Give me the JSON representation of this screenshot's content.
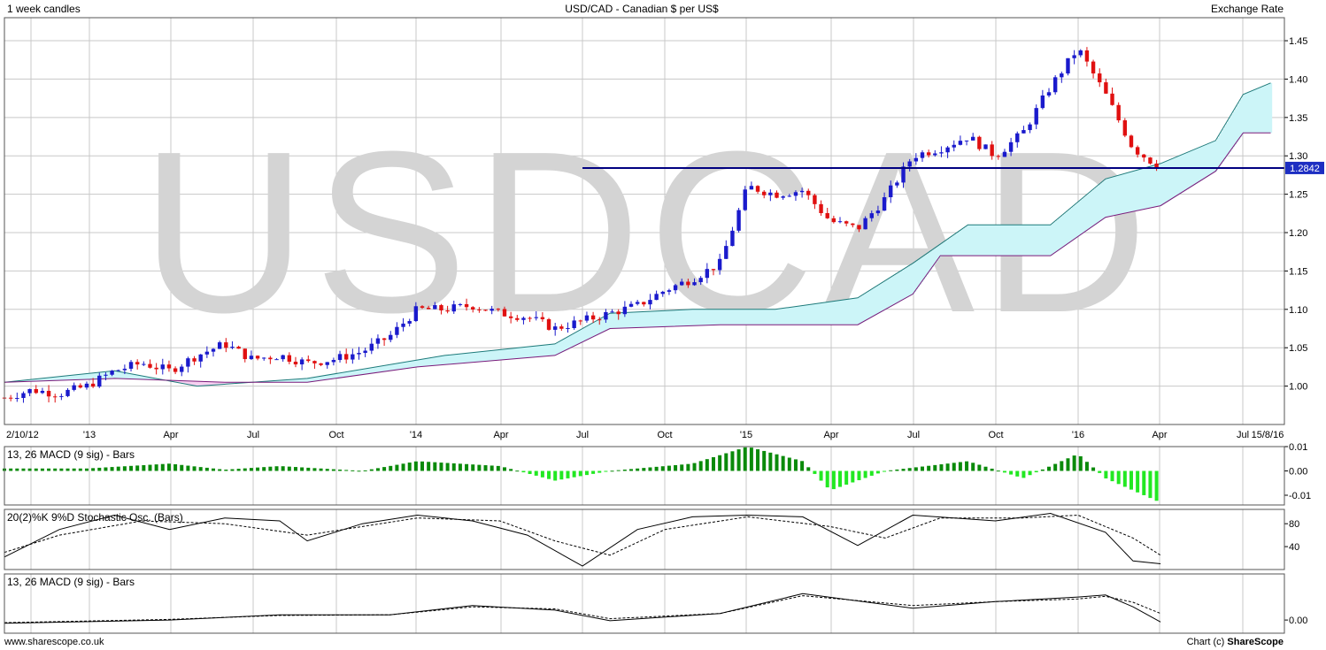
{
  "header": {
    "left": "1 week candles",
    "center": "USD/CAD - Canadian $ per US$",
    "right": "Exchange Rate"
  },
  "watermark": "USDCAD",
  "footer": {
    "left": "www.sharescope.co.uk",
    "right_prefix": "Chart (c) ",
    "right_brand": "ShareScope"
  },
  "colors": {
    "up_candle": "#1a1acc",
    "down_candle": "#e01010",
    "cloud_bull": "#ccf5f8",
    "cloud_bear": "#f6d0f0",
    "span_a": "#1d7a7a",
    "span_b": "#7a1a7a",
    "level_line": "#000080",
    "macd_bar_dark": "#0a8a0a",
    "macd_bar_light": "#22e822",
    "watermark": "#d4d4d4",
    "grid": "#c8c8c8"
  },
  "chart_data": [
    {
      "type": "candlestick",
      "title": "USD/CAD - Canadian $ per US$",
      "x_tick_labels": [
        "2/10/12",
        "'13",
        "Apr",
        "Jul",
        "Oct",
        "'14",
        "Apr",
        "Jul",
        "Oct",
        "'15",
        "Apr",
        "Jul",
        "Oct",
        "'16",
        "Apr",
        "Jul",
        "15/8/16"
      ],
      "y_ticks": [
        "1.00",
        "1.05",
        "1.10",
        "1.15",
        "1.20",
        "1.25",
        "1.30",
        "1.35",
        "1.40",
        "1.45"
      ],
      "ylim": [
        0.95,
        1.48
      ],
      "last_value": "1.2842",
      "last_value_num": 1.2842,
      "level_line": 1.2842,
      "level_line_start": "2014-07",
      "weekly_close_path": [
        [
          "2012-10",
          0.985
        ],
        [
          "2012-11",
          0.995
        ],
        [
          "2012-12",
          0.99
        ],
        [
          "2013-01",
          1.0
        ],
        [
          "2013-02",
          1.02
        ],
        [
          "2013-03",
          1.03
        ],
        [
          "2013-04",
          1.02
        ],
        [
          "2013-05",
          1.04
        ],
        [
          "2013-06",
          1.055
        ],
        [
          "2013-07",
          1.035
        ],
        [
          "2013-08",
          1.04
        ],
        [
          "2013-09",
          1.03
        ],
        [
          "2013-10",
          1.035
        ],
        [
          "2013-11",
          1.045
        ],
        [
          "2013-12",
          1.065
        ],
        [
          "2014-01",
          1.1
        ],
        [
          "2014-02",
          1.1
        ],
        [
          "2014-03",
          1.105
        ],
        [
          "2014-04",
          1.095
        ],
        [
          "2014-05",
          1.09
        ],
        [
          "2014-06",
          1.075
        ],
        [
          "2014-07",
          1.085
        ],
        [
          "2014-08",
          1.095
        ],
        [
          "2014-09",
          1.105
        ],
        [
          "2014-10",
          1.125
        ],
        [
          "2014-11",
          1.14
        ],
        [
          "2014-12",
          1.16
        ],
        [
          "2015-01",
          1.26
        ],
        [
          "2015-02",
          1.25
        ],
        [
          "2015-03",
          1.255
        ],
        [
          "2015-04",
          1.215
        ],
        [
          "2015-05",
          1.205
        ],
        [
          "2015-06",
          1.245
        ],
        [
          "2015-07",
          1.3
        ],
        [
          "2015-08",
          1.31
        ],
        [
          "2015-09",
          1.325
        ],
        [
          "2015-10",
          1.3
        ],
        [
          "2015-11",
          1.33
        ],
        [
          "2015-12",
          1.39
        ],
        [
          "2016-01",
          1.44
        ],
        [
          "2016-02",
          1.38
        ],
        [
          "2016-03",
          1.31
        ],
        [
          "2016-04",
          1.2842
        ]
      ],
      "cloud_span_a": [
        [
          "2012-10",
          1.005
        ],
        [
          "2013-02",
          1.02
        ],
        [
          "2013-05",
          1.0
        ],
        [
          "2013-09",
          1.01
        ],
        [
          "2014-02",
          1.04
        ],
        [
          "2014-06",
          1.055
        ],
        [
          "2014-08",
          1.095
        ],
        [
          "2014-11",
          1.1
        ],
        [
          "2015-02",
          1.1
        ],
        [
          "2015-05",
          1.115
        ],
        [
          "2015-07",
          1.16
        ],
        [
          "2015-09",
          1.21
        ],
        [
          "2015-12",
          1.21
        ],
        [
          "2016-02",
          1.27
        ],
        [
          "2016-04",
          1.29
        ],
        [
          "2016-06",
          1.32
        ],
        [
          "2016-07",
          1.38
        ],
        [
          "2016-08",
          1.395
        ]
      ],
      "cloud_span_b": [
        [
          "2012-10",
          1.005
        ],
        [
          "2013-02",
          1.01
        ],
        [
          "2013-06",
          1.005
        ],
        [
          "2013-09",
          1.005
        ],
        [
          "2014-01",
          1.025
        ],
        [
          "2014-06",
          1.04
        ],
        [
          "2014-08",
          1.075
        ],
        [
          "2014-12",
          1.08
        ],
        [
          "2015-05",
          1.08
        ],
        [
          "2015-07",
          1.12
        ],
        [
          "2015-08",
          1.17
        ],
        [
          "2015-12",
          1.17
        ],
        [
          "2016-02",
          1.22
        ],
        [
          "2016-04",
          1.235
        ],
        [
          "2016-06",
          1.28
        ],
        [
          "2016-07",
          1.33
        ],
        [
          "2016-08",
          1.33
        ]
      ]
    },
    {
      "type": "bar",
      "title": "13, 26 MACD (9 sig) - Bars",
      "y_ticks": [
        "0.01",
        "0.00",
        "-0.01"
      ],
      "ylim": [
        -0.014,
        0.01
      ],
      "histogram": [
        [
          "2012-10",
          0.001
        ],
        [
          "2013-01",
          0.001
        ],
        [
          "2013-04",
          0.003
        ],
        [
          "2013-06",
          0.0005
        ],
        [
          "2013-08",
          0.002
        ],
        [
          "2013-11",
          0.0
        ],
        [
          "2014-01",
          0.004
        ],
        [
          "2014-04",
          0.002
        ],
        [
          "2014-06",
          -0.004
        ],
        [
          "2014-08",
          0.0
        ],
        [
          "2014-11",
          0.003
        ],
        [
          "2015-01",
          0.01
        ],
        [
          "2015-03",
          0.004
        ],
        [
          "2015-04",
          -0.008
        ],
        [
          "2015-06",
          0.0
        ],
        [
          "2015-09",
          0.004
        ],
        [
          "2015-11",
          -0.003
        ],
        [
          "2016-01",
          0.007
        ],
        [
          "2016-02",
          -0.003
        ],
        [
          "2016-04",
          -0.013
        ]
      ]
    },
    {
      "type": "line",
      "title": "20(2)%K 9%D Stochastic Osc. (Bars)",
      "y_ticks": [
        "80",
        "40"
      ],
      "ylim": [
        0,
        105
      ],
      "series": [
        {
          "values": [
            [
              "2012-10",
              22
            ],
            [
              "2012-12",
              70
            ],
            [
              "2013-02",
              95
            ],
            [
              "2013-04",
              70
            ],
            [
              "2013-06",
              90
            ],
            [
              "2013-08",
              85
            ],
            [
              "2013-09",
              50
            ],
            [
              "2013-11",
              80
            ],
            [
              "2014-01",
              95
            ],
            [
              "2014-03",
              85
            ],
            [
              "2014-05",
              60
            ],
            [
              "2014-07",
              6
            ],
            [
              "2014-09",
              70
            ],
            [
              "2014-11",
              92
            ],
            [
              "2015-01",
              95
            ],
            [
              "2015-03",
              92
            ],
            [
              "2015-05",
              42
            ],
            [
              "2015-07",
              95
            ],
            [
              "2015-10",
              85
            ],
            [
              "2015-12",
              98
            ],
            [
              "2016-02",
              65
            ],
            [
              "2016-03",
              15
            ],
            [
              "2016-04",
              10
            ]
          ]
        },
        {
          "values": [
            [
              "2012-10",
              30
            ],
            [
              "2012-12",
              60
            ],
            [
              "2013-03",
              85
            ],
            [
              "2013-06",
              80
            ],
            [
              "2013-09",
              60
            ],
            [
              "2013-11",
              75
            ],
            [
              "2014-01",
              90
            ],
            [
              "2014-04",
              85
            ],
            [
              "2014-06",
              50
            ],
            [
              "2014-08",
              25
            ],
            [
              "2014-10",
              70
            ],
            [
              "2015-01",
              92
            ],
            [
              "2015-04",
              75
            ],
            [
              "2015-06",
              55
            ],
            [
              "2015-08",
              90
            ],
            [
              "2015-11",
              90
            ],
            [
              "2016-01",
              95
            ],
            [
              "2016-03",
              55
            ],
            [
              "2016-04",
              25
            ]
          ]
        }
      ]
    },
    {
      "type": "line",
      "title": "13, 26 MACD (9 sig) - Bars",
      "y_ticks": [
        "0.00"
      ],
      "ylim": [
        -0.02,
        0.07
      ],
      "series": [
        {
          "values": [
            [
              "2012-10",
              -0.005
            ],
            [
              "2013-04",
              0.0
            ],
            [
              "2013-08",
              0.008
            ],
            [
              "2013-12",
              0.008
            ],
            [
              "2014-03",
              0.022
            ],
            [
              "2014-06",
              0.015
            ],
            [
              "2014-08",
              -0.001
            ],
            [
              "2014-12",
              0.01
            ],
            [
              "2015-03",
              0.04
            ],
            [
              "2015-07",
              0.018
            ],
            [
              "2015-10",
              0.028
            ],
            [
              "2016-01",
              0.035
            ],
            [
              "2016-02",
              0.038
            ],
            [
              "2016-03",
              0.02
            ],
            [
              "2016-04",
              -0.003
            ]
          ]
        },
        {
          "values": [
            [
              "2012-10",
              -0.004
            ],
            [
              "2013-04",
              0.001
            ],
            [
              "2013-08",
              0.007
            ],
            [
              "2013-12",
              0.008
            ],
            [
              "2014-03",
              0.02
            ],
            [
              "2014-06",
              0.017
            ],
            [
              "2014-08",
              0.002
            ],
            [
              "2014-12",
              0.01
            ],
            [
              "2015-03",
              0.037
            ],
            [
              "2015-07",
              0.022
            ],
            [
              "2015-10",
              0.028
            ],
            [
              "2016-01",
              0.032
            ],
            [
              "2016-02",
              0.036
            ],
            [
              "2016-03",
              0.027
            ],
            [
              "2016-04",
              0.01
            ]
          ]
        }
      ]
    }
  ]
}
